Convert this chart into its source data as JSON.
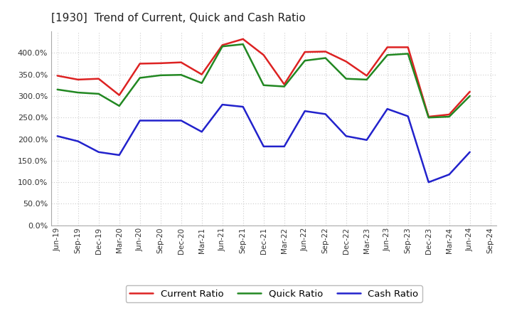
{
  "title": "[1930]  Trend of Current, Quick and Cash Ratio",
  "x_labels": [
    "Jun-19",
    "Sep-19",
    "Dec-19",
    "Mar-20",
    "Jun-20",
    "Sep-20",
    "Dec-20",
    "Mar-21",
    "Jun-21",
    "Sep-21",
    "Dec-21",
    "Mar-22",
    "Jun-22",
    "Sep-22",
    "Dec-22",
    "Mar-23",
    "Jun-23",
    "Sep-23",
    "Dec-23",
    "Mar-24",
    "Jun-24",
    "Sep-24"
  ],
  "current_ratio": [
    347,
    338,
    340,
    302,
    375,
    376,
    378,
    350,
    418,
    432,
    395,
    327,
    402,
    403,
    380,
    347,
    413,
    413,
    252,
    257,
    310,
    null
  ],
  "quick_ratio": [
    315,
    308,
    305,
    277,
    342,
    348,
    349,
    330,
    415,
    420,
    325,
    322,
    382,
    388,
    340,
    338,
    395,
    398,
    250,
    252,
    300,
    null
  ],
  "cash_ratio": [
    207,
    195,
    170,
    163,
    243,
    243,
    243,
    217,
    280,
    275,
    183,
    183,
    265,
    258,
    207,
    198,
    270,
    253,
    100,
    118,
    170,
    null
  ],
  "current_color": "#dd2222",
  "quick_color": "#228822",
  "cash_color": "#2222cc",
  "bg_color": "#ffffff",
  "plot_bg_color": "#ffffff",
  "grid_color": "#cccccc",
  "ylim": [
    0,
    450
  ],
  "yticks": [
    0,
    50,
    100,
    150,
    200,
    250,
    300,
    350,
    400
  ],
  "legend_labels": [
    "Current Ratio",
    "Quick Ratio",
    "Cash Ratio"
  ]
}
